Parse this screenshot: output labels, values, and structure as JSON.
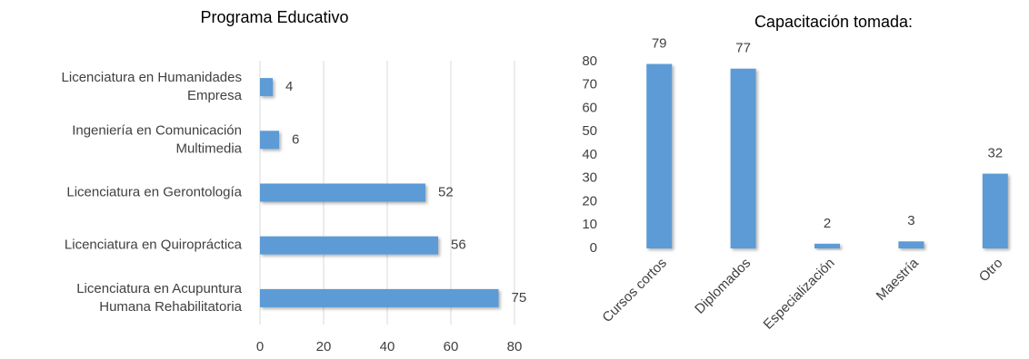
{
  "chart_data": [
    {
      "type": "hbar",
      "title": "Programa Educativo",
      "categories": [
        "Licenciatura en Humanidades Empresa",
        "Ingeniería en Comunicación Multimedia",
        "Licenciatura en Gerontología",
        "Licenciatura en Quiropráctica",
        "Licenciatura en Acupuntura Humana Rehabilitatoria"
      ],
      "values": [
        4,
        6,
        52,
        56,
        75
      ],
      "color": "#5b9bd5",
      "xlim": [
        0,
        80
      ],
      "xticks": [
        0,
        20,
        40,
        60,
        80
      ],
      "grid": true
    },
    {
      "type": "bar",
      "title": "Capacitación tomada:",
      "categories": [
        "Cursos cortos",
        "Diplomados",
        "Especialización",
        "Maestría",
        "Otro"
      ],
      "values": [
        79,
        77,
        2,
        3,
        32
      ],
      "color": "#5b9bd5",
      "ylim": [
        0,
        80
      ],
      "yticks": [
        0,
        10,
        20,
        30,
        40,
        50,
        60,
        70,
        80
      ],
      "grid": false
    }
  ]
}
